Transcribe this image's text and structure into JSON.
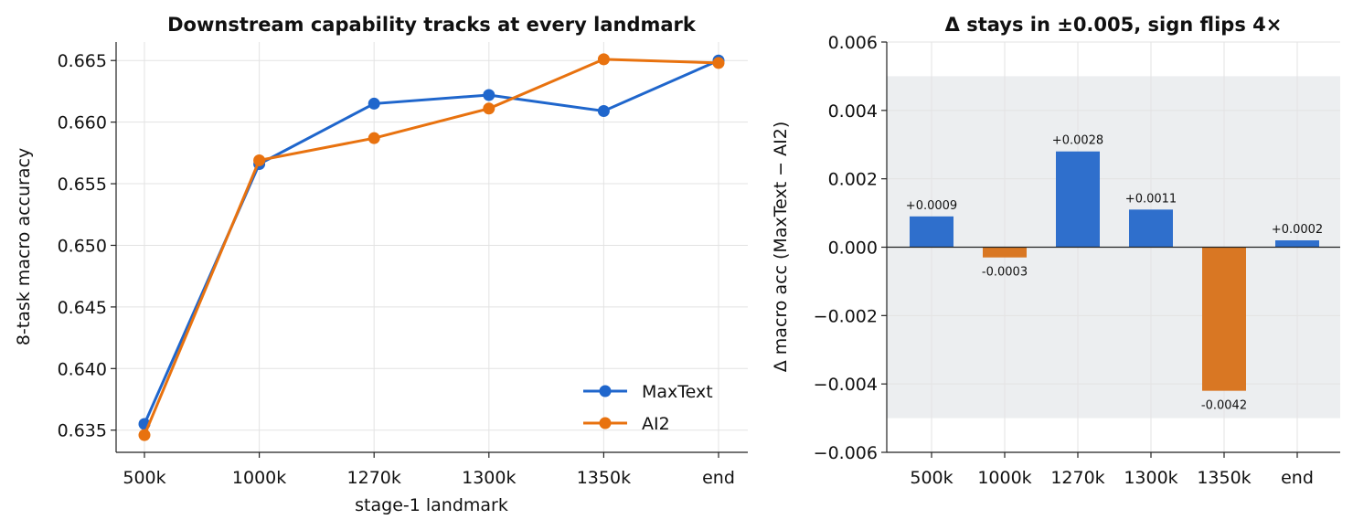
{
  "chart_data": [
    {
      "type": "line",
      "title": "Downstream capability tracks at every landmark",
      "xlabel": "stage-1 landmark",
      "ylabel": "8-task macro accuracy",
      "categories": [
        "500k",
        "1000k",
        "1270k",
        "1300k",
        "1350k",
        "end"
      ],
      "ylim": [
        0.6332,
        0.6665
      ],
      "yticks": [
        "0.635",
        "0.640",
        "0.645",
        "0.650",
        "0.655",
        "0.660",
        "0.665"
      ],
      "ytick_values": [
        0.635,
        0.64,
        0.645,
        0.65,
        0.655,
        0.66,
        0.665
      ],
      "grid": true,
      "legend_position": "bottom-right",
      "series": [
        {
          "name": "MaxText",
          "color": "#1f66cc",
          "values": [
            0.6355,
            0.6566,
            0.6615,
            0.6622,
            0.6609,
            0.665
          ]
        },
        {
          "name": "AI2",
          "color": "#e8720f",
          "values": [
            0.6346,
            0.6569,
            0.6587,
            0.6611,
            0.6651,
            0.6648
          ]
        }
      ]
    },
    {
      "type": "bar",
      "title": "Δ stays in ±0.005, sign flips 4×",
      "xlabel": "",
      "ylabel": "Δ macro acc (MaxText − AI2)",
      "categories": [
        "500k",
        "1000k",
        "1270k",
        "1300k",
        "1350k",
        "end"
      ],
      "values": [
        0.0009,
        -0.0003,
        0.0028,
        0.0011,
        -0.0042,
        0.0002
      ],
      "data_labels": [
        "+0.0009",
        "-0.0003",
        "+0.0028",
        "+0.0011",
        "-0.0042",
        "+0.0002"
      ],
      "ylim": [
        -0.006,
        0.006
      ],
      "yticks": [
        "−0.006",
        "−0.004",
        "−0.002",
        "0.000",
        "0.002",
        "0.004",
        "0.006"
      ],
      "ytick_values": [
        -0.006,
        -0.004,
        -0.002,
        0.0,
        0.002,
        0.004,
        0.006
      ],
      "band": [
        -0.005,
        0.005
      ],
      "band_color": "#eceef0",
      "positive_color": "#2f6fcc",
      "negative_color": "#d97723",
      "grid": true
    }
  ]
}
